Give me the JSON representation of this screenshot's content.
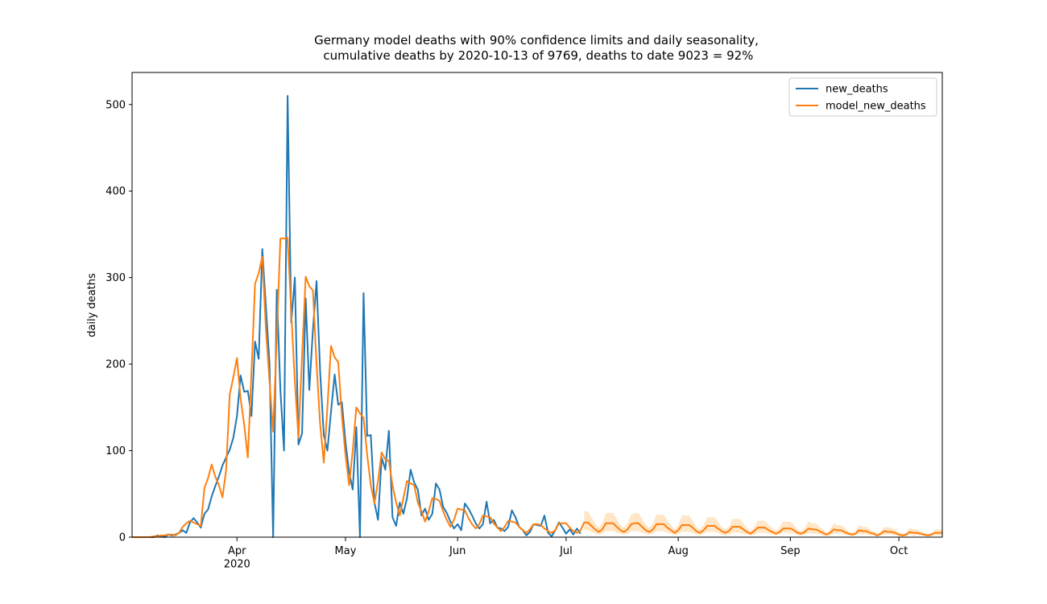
{
  "chart_data": {
    "type": "line",
    "title": "Germany model deaths with 90% confidence limits and daily seasonality,\n cumulative deaths by 2020-10-13 of 9769, deaths to date 9023 = 92%",
    "ylabel": "daily deaths",
    "xlim": [
      0,
      224
    ],
    "ylim": [
      0,
      537
    ],
    "xticks": [
      {
        "value": 29,
        "label": "Apr\n2020"
      },
      {
        "value": 59,
        "label": "May"
      },
      {
        "value": 90,
        "label": "Jun"
      },
      {
        "value": 120,
        "label": "Jul"
      },
      {
        "value": 151,
        "label": "Aug"
      },
      {
        "value": 182,
        "label": "Sep"
      },
      {
        "value": 212,
        "label": "Oct"
      }
    ],
    "yticks": [
      0,
      100,
      200,
      300,
      400,
      500
    ],
    "legend": "upper right",
    "series": [
      {
        "name": "new_deaths",
        "color": "#1f77b4",
        "values": [
          0,
          0,
          0,
          0,
          0,
          0,
          0,
          2,
          1,
          0,
          3,
          2,
          3,
          5,
          8,
          5,
          17,
          22,
          17,
          11,
          27,
          32,
          47,
          59,
          70,
          83,
          92,
          101,
          115,
          140,
          187,
          168,
          169,
          140,
          226,
          206,
          333,
          266,
          200,
          0,
          286,
          170,
          100,
          510,
          248,
          300,
          107,
          120,
          276,
          170,
          240,
          296,
          190,
          118,
          100,
          145,
          188,
          153,
          156,
          110,
          75,
          55,
          127,
          0,
          282,
          117,
          118,
          40,
          20,
          92,
          78,
          123,
          23,
          13,
          40,
          27,
          45,
          78,
          63,
          55,
          25,
          33,
          20,
          27,
          62,
          55,
          35,
          28,
          18,
          10,
          15,
          8,
          39,
          33,
          25,
          16,
          10,
          15,
          41,
          16,
          20,
          11,
          10,
          7,
          12,
          31,
          23,
          12,
          8,
          2,
          6,
          15,
          14,
          13,
          25,
          5,
          1,
          8,
          17,
          11,
          4,
          9,
          3,
          10,
          4,
          null,
          null,
          null,
          null,
          null,
          null,
          null,
          null,
          null,
          null,
          null,
          null,
          null,
          null,
          null,
          null,
          null,
          null,
          null,
          null,
          null,
          null,
          null,
          null,
          null,
          null,
          null,
          null,
          null,
          null,
          null,
          null,
          null,
          null,
          null,
          null,
          null,
          null,
          null,
          null,
          null,
          null,
          null,
          null,
          null,
          null,
          null,
          null,
          null,
          null,
          null,
          null,
          null,
          null,
          null,
          null,
          null,
          null,
          null,
          null,
          null,
          null,
          null,
          null,
          null,
          null,
          null,
          null,
          null,
          null,
          null,
          null,
          null,
          null,
          null,
          null,
          null,
          null,
          null,
          null,
          null,
          null,
          null,
          null,
          null,
          null,
          null,
          null,
          null,
          null,
          null,
          null,
          null,
          null,
          null,
          null,
          null,
          null,
          null,
          null
        ]
      },
      {
        "name": "model_new_deaths",
        "color": "#ff7f0e",
        "values": [
          0,
          0,
          0,
          0,
          0,
          0,
          1,
          1,
          2,
          2,
          3,
          3,
          2,
          5,
          12,
          16,
          19,
          17,
          15,
          13,
          57,
          68,
          84,
          70,
          60,
          46,
          78,
          165,
          185,
          207,
          160,
          130,
          92,
          190,
          293,
          305,
          324,
          240,
          180,
          122,
          230,
          345,
          345,
          346,
          260,
          180,
          115,
          210,
          301,
          290,
          285,
          200,
          130,
          86,
          150,
          221,
          208,
          202,
          140,
          95,
          60,
          100,
          150,
          143,
          138,
          95,
          60,
          39,
          65,
          98,
          90,
          88,
          60,
          40,
          25,
          45,
          65,
          62,
          60,
          40,
          30,
          18,
          30,
          45,
          44,
          42,
          30,
          20,
          12,
          20,
          33,
          32,
          31,
          22,
          15,
          10,
          15,
          25,
          24,
          23,
          16,
          11,
          7,
          12,
          19,
          18,
          17,
          12,
          8,
          5,
          9,
          15,
          15,
          14,
          10,
          7,
          5,
          8,
          16,
          16,
          16,
          11,
          7,
          5,
          8,
          17,
          17,
          13,
          9,
          6,
          9,
          16,
          16,
          16,
          12,
          8,
          6,
          9,
          15,
          16,
          16,
          12,
          8,
          6,
          9,
          15,
          15,
          15,
          11,
          8,
          5,
          8,
          14,
          14,
          14,
          11,
          7,
          5,
          8,
          13,
          13,
          13,
          10,
          7,
          5,
          7,
          12,
          12,
          12,
          9,
          6,
          4,
          7,
          11,
          11,
          11,
          8,
          6,
          4,
          6,
          10,
          10,
          10,
          8,
          5,
          4,
          6,
          10,
          9,
          9,
          7,
          5,
          3,
          5,
          9,
          8,
          8,
          6,
          4,
          3,
          4,
          8,
          7,
          7,
          5,
          4,
          2,
          4,
          7,
          6,
          6,
          5,
          3,
          2,
          3,
          6,
          5,
          5,
          4,
          3,
          2,
          3,
          5,
          5,
          5
        ]
      }
    ],
    "band": {
      "color": "#ffe0b8",
      "upper": [
        null,
        null,
        null,
        null,
        null,
        null,
        null,
        null,
        null,
        null,
        null,
        null,
        null,
        null,
        null,
        null,
        null,
        null,
        null,
        null,
        null,
        null,
        null,
        null,
        null,
        null,
        null,
        null,
        null,
        null,
        null,
        null,
        null,
        null,
        null,
        null,
        null,
        null,
        null,
        null,
        null,
        null,
        null,
        null,
        null,
        null,
        null,
        null,
        null,
        null,
        null,
        null,
        null,
        null,
        null,
        null,
        null,
        null,
        null,
        null,
        null,
        null,
        null,
        null,
        null,
        null,
        null,
        null,
        null,
        null,
        null,
        null,
        null,
        null,
        null,
        null,
        null,
        null,
        null,
        null,
        null,
        null,
        null,
        null,
        null,
        null,
        null,
        null,
        null,
        null,
        null,
        null,
        null,
        null,
        null,
        null,
        null,
        null,
        null,
        null,
        null,
        null,
        null,
        null,
        null,
        null,
        null,
        null,
        null,
        null,
        null,
        null,
        null,
        null,
        null,
        null,
        null,
        null,
        null,
        null,
        null,
        null,
        null,
        null,
        null,
        30,
        30,
        23,
        16,
        11,
        16,
        28,
        28,
        28,
        21,
        14,
        11,
        16,
        26,
        28,
        28,
        21,
        14,
        11,
        16,
        26,
        26,
        26,
        19,
        14,
        9,
        14,
        25,
        25,
        25,
        19,
        12,
        9,
        14,
        23,
        23,
        23,
        18,
        12,
        9,
        12,
        21,
        21,
        21,
        16,
        11,
        7,
        12,
        19,
        19,
        19,
        14,
        11,
        7,
        11,
        18,
        18,
        18,
        14,
        9,
        7,
        11,
        18,
        16,
        16,
        12,
        9,
        5,
        9,
        16,
        14,
        14,
        11,
        7,
        5,
        7,
        14,
        12,
        12,
        9,
        7,
        4,
        7,
        12,
        11,
        11,
        9,
        5,
        4,
        5,
        11,
        9,
        9,
        7,
        5,
        4,
        5,
        9,
        9,
        9
      ],
      "lower": [
        null,
        null,
        null,
        null,
        null,
        null,
        null,
        null,
        null,
        null,
        null,
        null,
        null,
        null,
        null,
        null,
        null,
        null,
        null,
        null,
        null,
        null,
        null,
        null,
        null,
        null,
        null,
        null,
        null,
        null,
        null,
        null,
        null,
        null,
        null,
        null,
        null,
        null,
        null,
        null,
        null,
        null,
        null,
        null,
        null,
        null,
        null,
        null,
        null,
        null,
        null,
        null,
        null,
        null,
        null,
        null,
        null,
        null,
        null,
        null,
        null,
        null,
        null,
        null,
        null,
        null,
        null,
        null,
        null,
        null,
        null,
        null,
        null,
        null,
        null,
        null,
        null,
        null,
        null,
        null,
        null,
        null,
        null,
        null,
        null,
        null,
        null,
        null,
        null,
        null,
        null,
        null,
        null,
        null,
        null,
        null,
        null,
        null,
        null,
        null,
        null,
        null,
        null,
        null,
        null,
        null,
        null,
        null,
        null,
        null,
        null,
        null,
        null,
        null,
        null,
        null,
        null,
        null,
        null,
        null,
        null,
        null,
        null,
        null,
        null,
        8,
        8,
        6,
        4,
        3,
        4,
        7,
        7,
        7,
        5,
        4,
        3,
        4,
        7,
        7,
        7,
        5,
        4,
        3,
        4,
        7,
        7,
        7,
        5,
        4,
        2,
        4,
        6,
        6,
        6,
        5,
        3,
        2,
        4,
        6,
        6,
        6,
        5,
        3,
        2,
        3,
        5,
        5,
        5,
        4,
        3,
        2,
        3,
        5,
        5,
        5,
        4,
        3,
        2,
        3,
        5,
        5,
        5,
        4,
        2,
        2,
        3,
        5,
        4,
        4,
        3,
        2,
        1,
        2,
        4,
        4,
        4,
        3,
        2,
        1,
        2,
        4,
        3,
        3,
        2,
        2,
        1,
        2,
        3,
        3,
        3,
        2,
        1,
        1,
        1,
        3,
        2,
        2,
        2,
        1,
        1,
        1,
        2,
        2,
        2
      ]
    }
  }
}
